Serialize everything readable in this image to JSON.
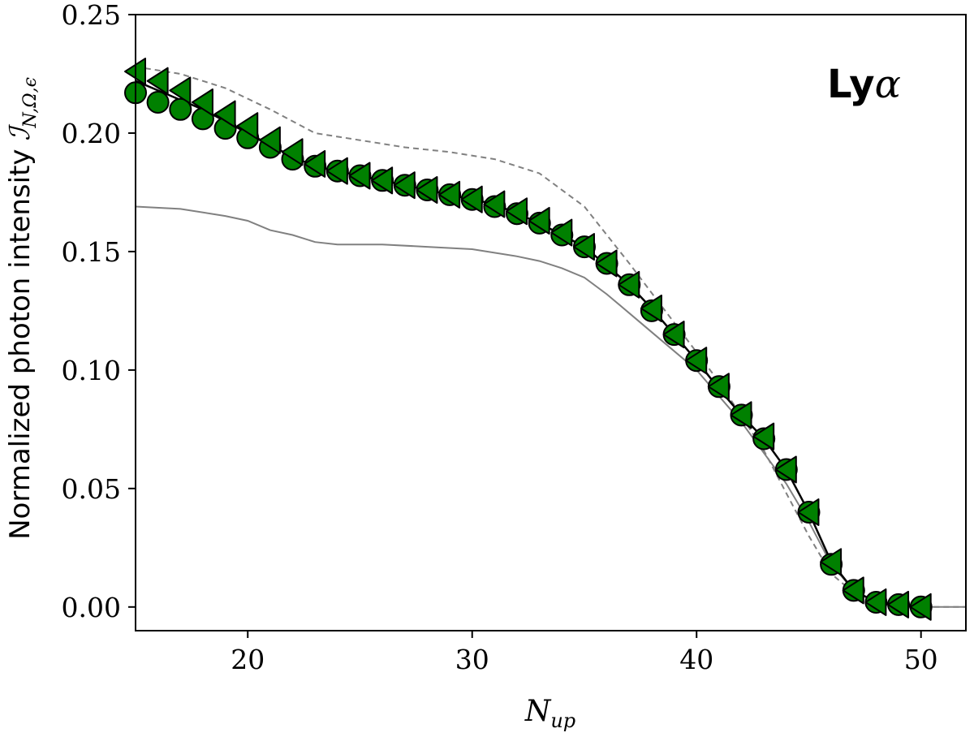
{
  "chart_data": {
    "type": "line",
    "title": "",
    "xlabel": "N",
    "xlabel_sub": "up",
    "ylabel": "Normalized photon intensity",
    "ylabel_sym": "ℐ",
    "ylabel_sub": "N,Ω,ϵ",
    "xlim": [
      15,
      52
    ],
    "ylim": [
      -0.01,
      0.25
    ],
    "xticks": [
      20,
      30,
      40,
      50
    ],
    "yticks": [
      0.0,
      0.05,
      0.1,
      0.15,
      0.2,
      0.25
    ],
    "xtick_labels": [
      "20",
      "30",
      "40",
      "50"
    ],
    "ytick_labels": [
      "0.00",
      "0.05",
      "0.10",
      "0.15",
      "0.20",
      "0.25"
    ],
    "annotation": {
      "label": "Ly",
      "symbol": "α",
      "placement": "top-right"
    },
    "legend": "none",
    "grid": false,
    "marker_color": "#008000",
    "series": [
      {
        "style": "dashed-gray",
        "color": "#808080",
        "x": [
          15,
          17,
          19,
          21,
          23,
          25,
          27,
          29,
          31,
          33,
          35,
          37,
          39,
          41,
          43,
          44,
          45,
          46,
          47,
          48,
          50,
          52
        ],
        "y": [
          0.228,
          0.225,
          0.219,
          0.21,
          0.2,
          0.197,
          0.194,
          0.192,
          0.189,
          0.183,
          0.169,
          0.145,
          0.12,
          0.095,
          0.066,
          0.048,
          0.03,
          0.014,
          0.006,
          0.002,
          0.0,
          0.0
        ]
      },
      {
        "style": "solid-gray",
        "color": "#808080",
        "x": [
          15,
          17,
          19,
          20,
          21,
          22,
          23,
          24,
          26,
          28,
          30,
          32,
          33,
          34,
          35,
          36,
          37,
          38,
          40,
          42,
          44,
          45,
          46,
          47,
          48,
          50,
          52
        ],
        "y": [
          0.169,
          0.168,
          0.165,
          0.163,
          0.159,
          0.157,
          0.154,
          0.153,
          0.153,
          0.152,
          0.151,
          0.148,
          0.146,
          0.143,
          0.139,
          0.132,
          0.124,
          0.116,
          0.1,
          0.078,
          0.052,
          0.036,
          0.018,
          0.007,
          0.002,
          0.0,
          0.0
        ]
      },
      {
        "style": "solid-black",
        "color": "#000000",
        "x": [
          15,
          16,
          17,
          18,
          19,
          20,
          21,
          22,
          23,
          24,
          25,
          26,
          27,
          28,
          29,
          30,
          31,
          32,
          33,
          34,
          35,
          36,
          37,
          38,
          39,
          40,
          41,
          42,
          43,
          44,
          45,
          46,
          47,
          48,
          49,
          50
        ],
        "y": [
          0.222,
          0.218,
          0.214,
          0.21,
          0.205,
          0.2,
          0.195,
          0.19,
          0.186,
          0.184,
          0.182,
          0.18,
          0.178,
          0.176,
          0.174,
          0.172,
          0.17,
          0.166,
          0.162,
          0.157,
          0.152,
          0.144,
          0.136,
          0.126,
          0.115,
          0.104,
          0.092,
          0.081,
          0.071,
          0.058,
          0.04,
          0.019,
          0.007,
          0.002,
          0.001,
          0.0
        ]
      },
      {
        "style": "circle-markers",
        "color": "#008000",
        "x": [
          15,
          16,
          17,
          18,
          19,
          20,
          21,
          22,
          23,
          24,
          25,
          26,
          27,
          28,
          29,
          30,
          31,
          32,
          33,
          34,
          35,
          36,
          37,
          38,
          39,
          40,
          41,
          42,
          43,
          44,
          45,
          46,
          47,
          48,
          49,
          50
        ],
        "y": [
          0.217,
          0.213,
          0.21,
          0.206,
          0.202,
          0.198,
          0.194,
          0.189,
          0.186,
          0.184,
          0.182,
          0.18,
          0.178,
          0.176,
          0.174,
          0.172,
          0.169,
          0.166,
          0.162,
          0.157,
          0.152,
          0.145,
          0.136,
          0.125,
          0.115,
          0.104,
          0.093,
          0.081,
          0.071,
          0.058,
          0.04,
          0.018,
          0.007,
          0.002,
          0.001,
          0.0
        ]
      },
      {
        "style": "triangle-left-markers",
        "color": "#008000",
        "x": [
          15,
          16,
          17,
          18,
          19,
          20,
          21,
          22,
          23,
          24,
          25,
          26,
          27,
          28,
          29,
          30,
          31,
          32,
          33,
          34,
          35,
          36,
          37,
          38,
          39,
          40,
          41,
          42,
          43,
          44,
          45,
          46,
          47,
          48,
          49,
          50
        ],
        "y": [
          0.226,
          0.222,
          0.218,
          0.213,
          0.208,
          0.203,
          0.197,
          0.192,
          0.187,
          0.184,
          0.182,
          0.18,
          0.178,
          0.176,
          0.174,
          0.172,
          0.17,
          0.167,
          0.163,
          0.158,
          0.152,
          0.145,
          0.136,
          0.126,
          0.115,
          0.104,
          0.093,
          0.081,
          0.072,
          0.058,
          0.04,
          0.019,
          0.007,
          0.002,
          0.001,
          0.0
        ]
      }
    ]
  }
}
